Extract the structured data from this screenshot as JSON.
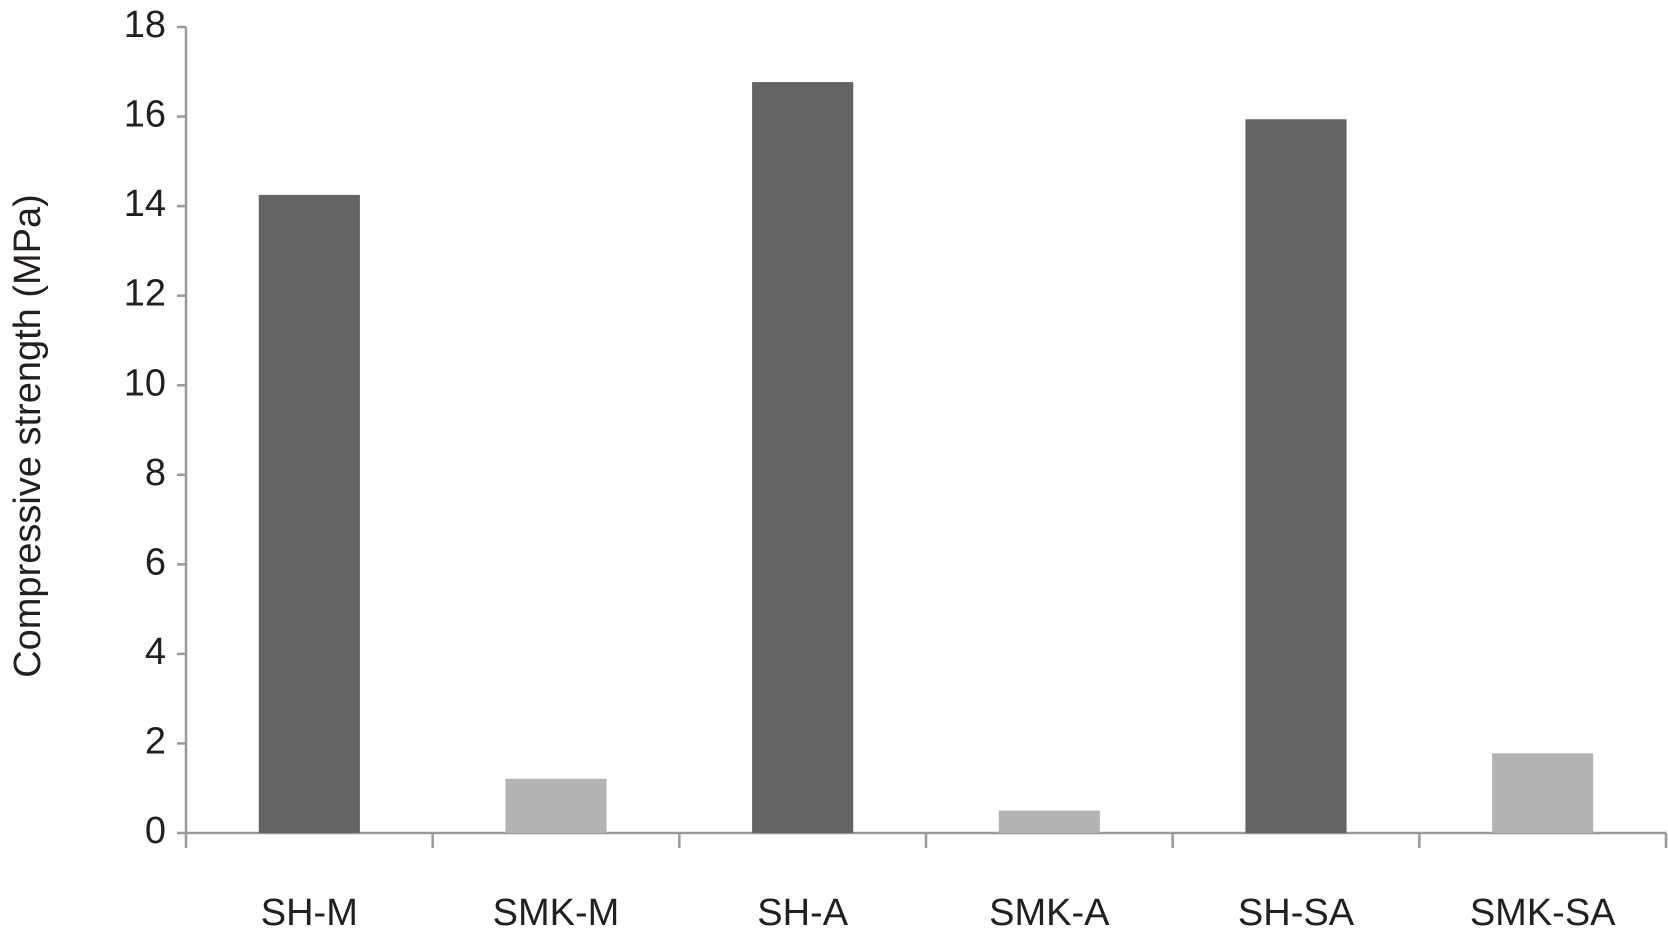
{
  "chart_data": {
    "type": "bar",
    "y_label": "Compressive strength (MPa)",
    "categories": [
      "SH-M",
      "SMK-M",
      "SH-A",
      "SMK-A",
      "SH-SA",
      "SMK-SA"
    ],
    "values": [
      14.25,
      1.21,
      16.77,
      0.5,
      15.94,
      1.78
    ],
    "colors": [
      "#636466",
      "#b3b4b6",
      "#636466",
      "#b3b4b6",
      "#636466",
      "#b3b4b6"
    ],
    "ylim": [
      0,
      18
    ],
    "yticks": [
      0,
      2,
      4,
      6,
      8,
      10,
      12,
      14,
      16,
      18
    ],
    "grid": false
  }
}
